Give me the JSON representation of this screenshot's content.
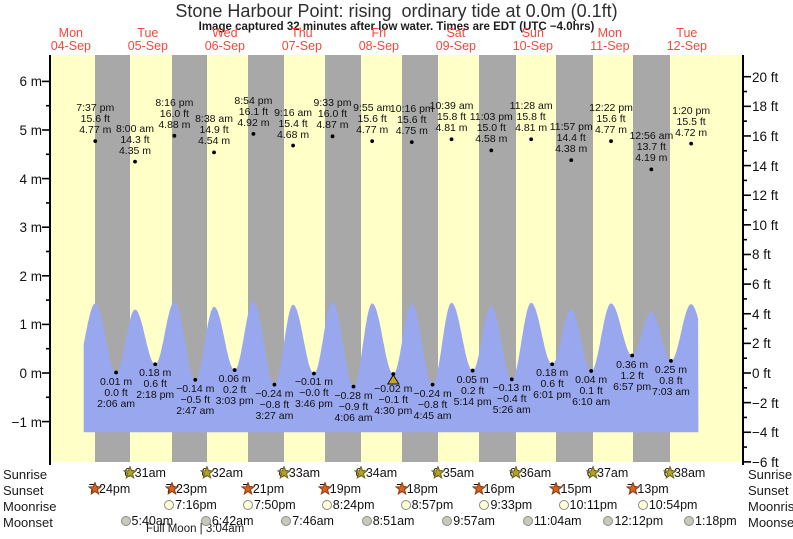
{
  "chart_data": {
    "type": "area",
    "title": "Stone Harbour Point: rising  ordinary tide at 0.0m (0.1ft)",
    "subtitle": "Image captured 32 minutes after low water. Times are EDT (UTC −4.0hrs)",
    "x_axis": {
      "days": [
        {
          "name": "Mon",
          "date": "04-Sep"
        },
        {
          "name": "Tue",
          "date": "05-Sep"
        },
        {
          "name": "Wed",
          "date": "06-Sep"
        },
        {
          "name": "Thu",
          "date": "07-Sep"
        },
        {
          "name": "Fri",
          "date": "08-Sep"
        },
        {
          "name": "Sat",
          "date": "09-Sep"
        },
        {
          "name": "Sun",
          "date": "10-Sep"
        },
        {
          "name": "Mon",
          "date": "11-Sep"
        },
        {
          "name": "Tue",
          "date": "12-Sep"
        }
      ]
    },
    "y_axis_left": {
      "unit": "m",
      "ticks": [
        {
          "label": "6 m",
          "value": 6
        },
        {
          "label": "5 m",
          "value": 5
        },
        {
          "label": "4 m",
          "value": 4
        },
        {
          "label": "3 m",
          "value": 3
        },
        {
          "label": "2 m",
          "value": 2
        },
        {
          "label": "1 m",
          "value": 1
        },
        {
          "label": "0 m",
          "value": 0
        },
        {
          "label": "−1 m",
          "value": -1
        }
      ]
    },
    "y_axis_right": {
      "unit": "ft",
      "ticks": [
        {
          "label": "20 ft",
          "value": 20
        },
        {
          "label": "18 ft",
          "value": 18
        },
        {
          "label": "16 ft",
          "value": 16
        },
        {
          "label": "14 ft",
          "value": 14
        },
        {
          "label": "12 ft",
          "value": 12
        },
        {
          "label": "10 ft",
          "value": 10
        },
        {
          "label": "8 ft",
          "value": 8
        },
        {
          "label": "6 ft",
          "value": 6
        },
        {
          "label": "4 ft",
          "value": 4
        },
        {
          "label": "2 ft",
          "value": 2
        },
        {
          "label": "0 ft",
          "value": 0
        },
        {
          "label": "−2 ft",
          "value": -2
        },
        {
          "label": "−4 ft",
          "value": -4
        },
        {
          "label": "−6 ft",
          "value": -6
        }
      ]
    },
    "tides": {
      "highs": [
        {
          "day": 0,
          "time": "7:37 pm",
          "ft": "15.6 ft",
          "m": "4.77 m",
          "m_val": 4.77
        },
        {
          "day": 1,
          "time": "8:00 am",
          "ft": "14.3 ft",
          "m": "4.35 m",
          "m_val": 4.35
        },
        {
          "day": 1,
          "time": "8:16 pm",
          "ft": "16.0 ft",
          "m": "4.88 m",
          "m_val": 4.88
        },
        {
          "day": 2,
          "time": "8:38 am",
          "ft": "14.9 ft",
          "m": "4.54 m",
          "m_val": 4.54
        },
        {
          "day": 2,
          "time": "8:54 pm",
          "ft": "16.1 ft",
          "m": "4.92 m",
          "m_val": 4.92
        },
        {
          "day": 3,
          "time": "9:16 am",
          "ft": "15.4 ft",
          "m": "4.68 m",
          "m_val": 4.68
        },
        {
          "day": 3,
          "time": "9:33 pm",
          "ft": "16.0 ft",
          "m": "4.87 m",
          "m_val": 4.87
        },
        {
          "day": 4,
          "time": "9:55 am",
          "ft": "15.6 ft",
          "m": "4.77 m",
          "m_val": 4.77
        },
        {
          "day": 4,
          "time": "10:16 pm",
          "ft": "15.6 ft",
          "m": "4.75 m",
          "m_val": 4.75
        },
        {
          "day": 5,
          "time": "10:39 am",
          "ft": "15.8 ft",
          "m": "4.81 m",
          "m_val": 4.81
        },
        {
          "day": 5,
          "time": "11:03 pm",
          "ft": "15.0 ft",
          "m": "4.58 m",
          "m_val": 4.58
        },
        {
          "day": 6,
          "time": "11:28 am",
          "ft": "15.8 ft",
          "m": "4.81 m",
          "m_val": 4.81
        },
        {
          "day": 6,
          "time": "11:57 pm",
          "ft": "14.4 ft",
          "m": "4.38 m",
          "m_val": 4.38
        },
        {
          "day": 7,
          "time": "12:22 pm",
          "ft": "15.6 ft",
          "m": "4.77 m",
          "m_val": 4.77
        },
        {
          "day": 8,
          "time": "12:56 am",
          "ft": "13.7 ft",
          "m": "4.19 m",
          "m_val": 4.19
        },
        {
          "day": 8,
          "time": "1:20 pm",
          "ft": "15.5 ft",
          "m": "4.72 m",
          "m_val": 4.72
        }
      ],
      "lows": [
        {
          "day": 1,
          "time": "2:06 am",
          "m": "0.01 m",
          "ft": "0.0 ft",
          "m_val": 0.01
        },
        {
          "day": 1,
          "time": "2:18 pm",
          "m": "0.18 m",
          "ft": "0.6 ft",
          "m_val": 0.18
        },
        {
          "day": 2,
          "time": "2:47 am",
          "m": "−0.14 m",
          "ft": "−0.5 ft",
          "m_val": -0.14
        },
        {
          "day": 2,
          "time": "3:03 pm",
          "m": "0.06 m",
          "ft": "0.2 ft",
          "m_val": 0.06
        },
        {
          "day": 3,
          "time": "3:27 am",
          "m": "−0.24 m",
          "ft": "−0.8 ft",
          "m_val": -0.24
        },
        {
          "day": 3,
          "time": "3:46 pm",
          "m": "−0.01 m",
          "ft": "−0.0 ft",
          "m_val": -0.01
        },
        {
          "day": 4,
          "time": "4:06 am",
          "m": "−0.28 m",
          "ft": "−0.9 ft",
          "m_val": -0.28
        },
        {
          "day": 4,
          "time": "4:30 pm",
          "m": "−0.02 m",
          "ft": "−0.1 ft",
          "m_val": -0.02,
          "current": true
        },
        {
          "day": 5,
          "time": "4:45 am",
          "m": "−0.24 m",
          "ft": "−0.8 ft",
          "m_val": -0.24
        },
        {
          "day": 5,
          "time": "5:14 pm",
          "m": "0.05 m",
          "ft": "0.2 ft",
          "m_val": 0.05
        },
        {
          "day": 6,
          "time": "5:26 am",
          "m": "−0.13 m",
          "ft": "−0.4 ft",
          "m_val": -0.13
        },
        {
          "day": 6,
          "time": "6:01 pm",
          "m": "0.18 m",
          "ft": "0.6 ft",
          "m_val": 0.18
        },
        {
          "day": 7,
          "time": "6:10 am",
          "m": "0.04 m",
          "ft": "0.1 ft",
          "m_val": 0.04
        },
        {
          "day": 7,
          "time": "6:57 pm",
          "m": "0.36 m",
          "ft": "1.2 ft",
          "m_val": 0.36
        },
        {
          "day": 8,
          "time": "7:03 am",
          "m": "0.25 m",
          "ft": "0.8 ft",
          "m_val": 0.25
        }
      ]
    },
    "sun_moon": {
      "row_labels": [
        "Sunrise",
        "Sunset",
        "Moonrise",
        "Moonset"
      ],
      "sunrise": [
        {
          "day": 1,
          "time": "6:31am"
        },
        {
          "day": 2,
          "time": "6:32am"
        },
        {
          "day": 3,
          "time": "6:33am"
        },
        {
          "day": 4,
          "time": "6:34am"
        },
        {
          "day": 5,
          "time": "6:35am"
        },
        {
          "day": 6,
          "time": "6:36am"
        },
        {
          "day": 7,
          "time": "6:37am"
        },
        {
          "day": 8,
          "time": "6:38am"
        }
      ],
      "sunset": [
        {
          "day": 0,
          "time": "7:24pm"
        },
        {
          "day": 1,
          "time": "7:23pm"
        },
        {
          "day": 2,
          "time": "7:21pm"
        },
        {
          "day": 3,
          "time": "7:19pm"
        },
        {
          "day": 4,
          "time": "7:18pm"
        },
        {
          "day": 5,
          "time": "7:16pm"
        },
        {
          "day": 6,
          "time": "7:15pm"
        },
        {
          "day": 7,
          "time": "7:13pm"
        }
      ],
      "moonrise": [
        {
          "day": 1,
          "time": "7:16pm"
        },
        {
          "day": 2,
          "time": "7:50pm"
        },
        {
          "day": 3,
          "time": "8:24pm"
        },
        {
          "day": 4,
          "time": "8:57pm"
        },
        {
          "day": 5,
          "time": "9:33pm"
        },
        {
          "day": 6,
          "time": "10:11pm"
        },
        {
          "day": 7,
          "time": "10:54pm"
        }
      ],
      "moonset": [
        {
          "day": 1,
          "time": "5:40am"
        },
        {
          "day": 2,
          "time": "6:42am"
        },
        {
          "day": 3,
          "time": "7:46am"
        },
        {
          "day": 4,
          "time": "8:51am"
        },
        {
          "day": 5,
          "time": "9:57am"
        },
        {
          "day": 6,
          "time": "11:04am"
        },
        {
          "day": 7,
          "time": "12:12pm"
        },
        {
          "day": 8,
          "time": "1:18pm"
        }
      ],
      "full_moon_label": "Full Moon | 3:04am"
    }
  },
  "colors": {
    "day_band": "#ffffc8",
    "night_band": "#a8a8a8",
    "tide_area": "#99a7ee",
    "date_label": "#f8473b",
    "axis": "#000000",
    "sunrise_star": "#b2a226",
    "sunrise_star_edge": "#6e641a",
    "sunset_star": "#d4641e",
    "sunset_star_edge": "#8a3c0e",
    "moonrise_circle": "#ffffd6",
    "moonset_circle": "#c9c9ba",
    "current_marker": "#c9a81f"
  }
}
